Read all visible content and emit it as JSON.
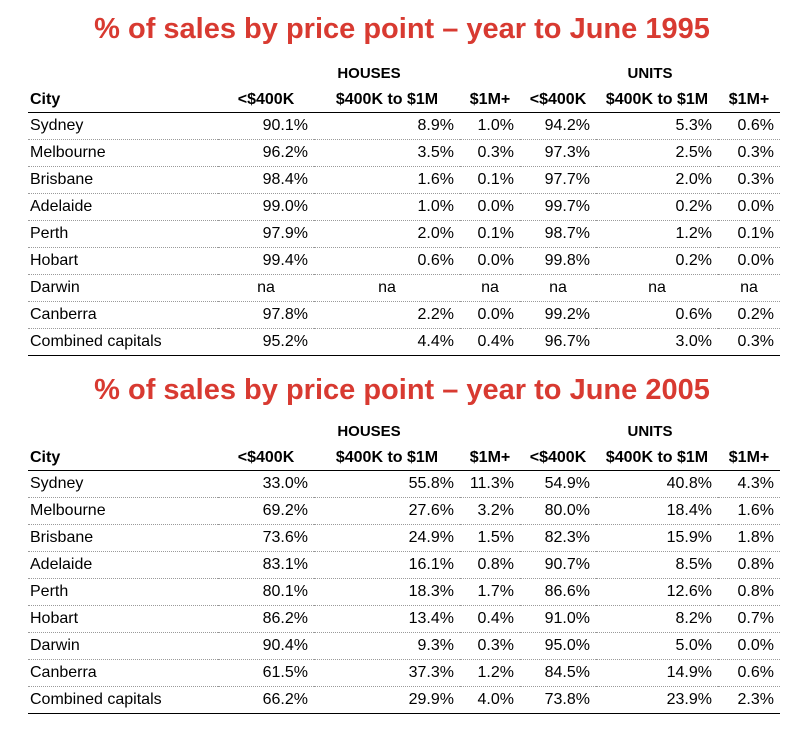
{
  "tables": [
    {
      "title": "% of sales by price point – year to June 1995",
      "houses_label": "HOUSES",
      "units_label": "UNITS",
      "columns": [
        "City",
        "<$400K",
        "$400K to $1M",
        "$1M+",
        "<$400K",
        "$400K to $1M",
        "$1M+"
      ],
      "rows": [
        [
          "Sydney",
          "90.1%",
          "8.9%",
          "1.0%",
          "94.2%",
          "5.3%",
          "0.6%"
        ],
        [
          "Melbourne",
          "96.2%",
          "3.5%",
          "0.3%",
          "97.3%",
          "2.5%",
          "0.3%"
        ],
        [
          "Brisbane",
          "98.4%",
          "1.6%",
          "0.1%",
          "97.7%",
          "2.0%",
          "0.3%"
        ],
        [
          "Adelaide",
          "99.0%",
          "1.0%",
          "0.0%",
          "99.7%",
          "0.2%",
          "0.0%"
        ],
        [
          "Perth",
          "97.9%",
          "2.0%",
          "0.1%",
          "98.7%",
          "1.2%",
          "0.1%"
        ],
        [
          "Hobart",
          "99.4%",
          "0.6%",
          "0.0%",
          "99.8%",
          "0.2%",
          "0.0%"
        ],
        [
          "Darwin",
          "na",
          "na",
          "na",
          "na",
          "na",
          "na"
        ],
        [
          "Canberra",
          "97.8%",
          "2.2%",
          "0.0%",
          "99.2%",
          "0.6%",
          "0.2%"
        ],
        [
          "Combined capitals",
          "95.2%",
          "4.4%",
          "0.4%",
          "96.7%",
          "3.0%",
          "0.3%"
        ]
      ]
    },
    {
      "title": "% of sales by price point – year to June 2005",
      "houses_label": "HOUSES",
      "units_label": "UNITS",
      "columns": [
        "City",
        "<$400K",
        "$400K to $1M",
        "$1M+",
        "<$400K",
        "$400K to $1M",
        "$1M+"
      ],
      "rows": [
        [
          "Sydney",
          "33.0%",
          "55.8%",
          "11.3%",
          "54.9%",
          "40.8%",
          "4.3%"
        ],
        [
          "Melbourne",
          "69.2%",
          "27.6%",
          "3.2%",
          "80.0%",
          "18.4%",
          "1.6%"
        ],
        [
          "Brisbane",
          "73.6%",
          "24.9%",
          "1.5%",
          "82.3%",
          "15.9%",
          "1.8%"
        ],
        [
          "Adelaide",
          "83.1%",
          "16.1%",
          "0.8%",
          "90.7%",
          "8.5%",
          "0.8%"
        ],
        [
          "Perth",
          "80.1%",
          "18.3%",
          "1.7%",
          "86.6%",
          "12.6%",
          "0.8%"
        ],
        [
          "Hobart",
          "86.2%",
          "13.4%",
          "0.4%",
          "91.0%",
          "8.2%",
          "0.7%"
        ],
        [
          "Darwin",
          "90.4%",
          "9.3%",
          "0.3%",
          "95.0%",
          "5.0%",
          "0.0%"
        ],
        [
          "Canberra",
          "61.5%",
          "37.3%",
          "1.2%",
          "84.5%",
          "14.9%",
          "0.6%"
        ],
        [
          "Combined capitals",
          "66.2%",
          "29.9%",
          "4.0%",
          "73.8%",
          "23.9%",
          "2.3%"
        ]
      ]
    }
  ],
  "colors": {
    "title": "#d83a31",
    "text": "#000000",
    "row_divider": "#9a9a9a"
  }
}
